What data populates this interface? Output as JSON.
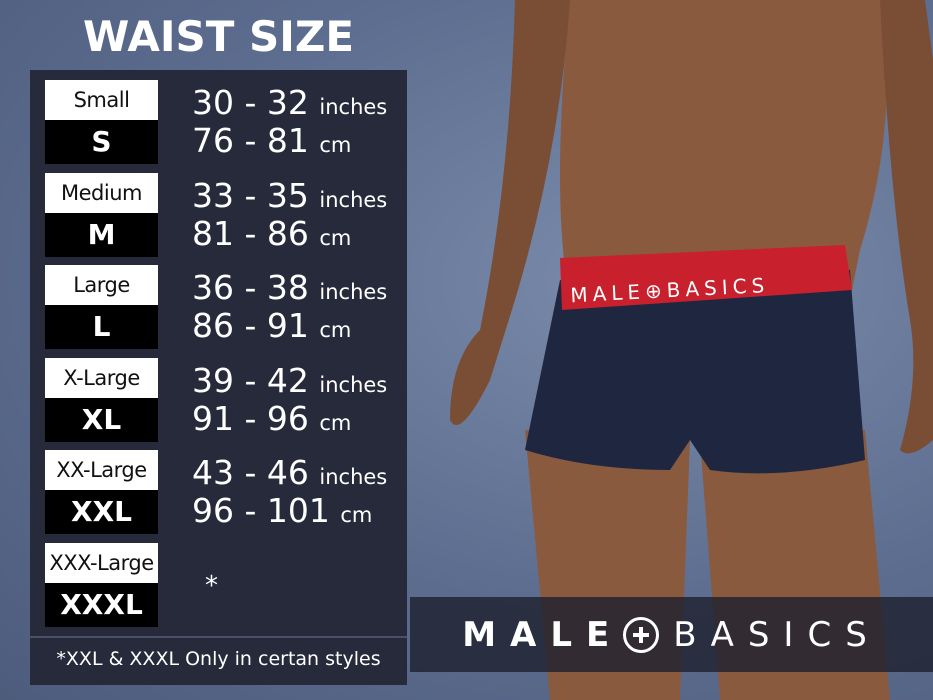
{
  "title": "WAIST SIZE",
  "sizes": [
    {
      "name": "Small",
      "code": "S",
      "inches": "30 - 32",
      "cm": "76 - 81"
    },
    {
      "name": "Medium",
      "code": "M",
      "inches": "33 - 35",
      "cm": "81 - 86"
    },
    {
      "name": "Large",
      "code": "L",
      "inches": "36 - 38",
      "cm": "86 - 91"
    },
    {
      "name": "X-Large",
      "code": "XL",
      "inches": "39 - 42",
      "cm": "91 - 96"
    },
    {
      "name": "XX-Large",
      "code": "XXL",
      "inches": "43 - 46",
      "cm": "96 - 101"
    },
    {
      "name": "XXX-Large",
      "code": "XXXL",
      "note": "*"
    }
  ],
  "units": {
    "inches": "inches",
    "cm": "cm"
  },
  "footnote": "*XXL & XXXL Only in certan styles",
  "brand": {
    "left": "MALE",
    "right": "BASICS",
    "waistband": "MALE⊕BASICS"
  },
  "colors": {
    "panel": "#262a3a",
    "waistband": "#c8202c",
    "boxer": "#1f2740"
  }
}
